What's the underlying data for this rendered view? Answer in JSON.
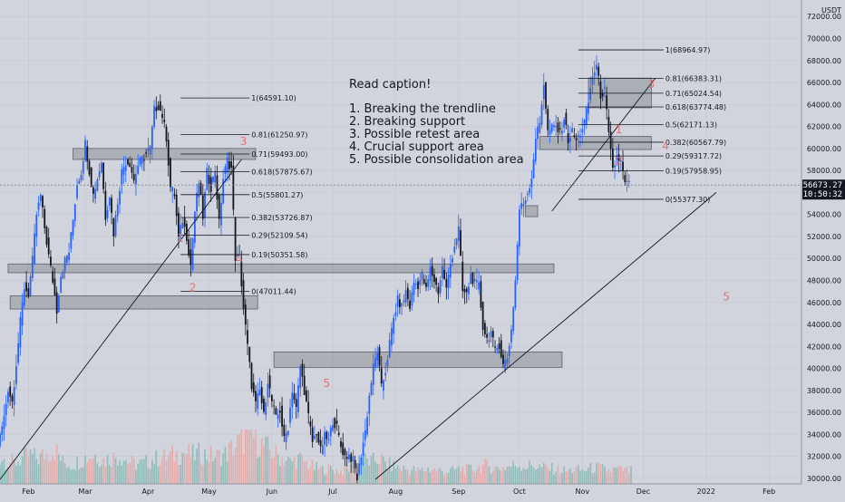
{
  "chart_data": {
    "type": "candlestick",
    "axis": {
      "currency": "USDT",
      "y_ticks": [
        30000,
        32000,
        34000,
        36000,
        38000,
        40000,
        42000,
        44000,
        46000,
        48000,
        50000,
        52000,
        54000,
        56000,
        58000,
        60000,
        62000,
        64000,
        66000,
        68000,
        70000,
        72000
      ],
      "y_tick_labels": [
        "30000.00",
        "32000.00",
        "34000.00",
        "36000.00",
        "38000.00",
        "40000.00",
        "42000.00",
        "44000.00",
        "46000.00",
        "48000.00",
        "50000.00",
        "52000.00",
        "54000.00",
        "56000.00",
        "58000.00",
        "60000.00",
        "62000.00",
        "64000.00",
        "66000.00",
        "68000.00",
        "70000.00",
        "72000.00"
      ],
      "ylim": [
        29500,
        73500
      ],
      "x_ticks": [
        "Feb",
        "Mar",
        "Apr",
        "May",
        "Jun",
        "Jul",
        "Aug",
        "Sep",
        "Oct",
        "Nov",
        "Dec",
        "2022",
        "Feb"
      ],
      "x_tick_days": [
        31,
        59,
        90,
        120,
        151,
        181,
        212,
        243,
        273,
        304,
        334,
        365,
        396
      ],
      "xlim_days": [
        17,
        412
      ]
    },
    "last_price": {
      "value": "56673.27",
      "time": "10:50:32",
      "y": 56673.27
    },
    "caption": {
      "title": "Read caption!",
      "items": [
        "1. Breaking the trendline",
        "2. Breaking support",
        "3. Possible retest area",
        "4. Crucial support area",
        "5. Possible consolidation area"
      ]
    },
    "fib_left": {
      "levels": [
        {
          "label": "1(64591.10)",
          "y": 64591.1
        },
        {
          "label": "0.81(61250.97)",
          "y": 61250.97
        },
        {
          "label": "0.71(59493.00)",
          "y": 59493.0
        },
        {
          "label": "0.618(57875.67)",
          "y": 57875.67
        },
        {
          "label": "0.5(55801.27)",
          "y": 55801.27
        },
        {
          "label": "0.382(53726.87)",
          "y": 53726.87
        },
        {
          "label": "0.29(52109.54)",
          "y": 52109.54
        },
        {
          "label": "0.19(50351.58)",
          "y": 50351.58
        },
        {
          "label": "0(47011.44)",
          "y": 47011.44
        }
      ],
      "x_from_day": 106,
      "x_to_day": 140
    },
    "fib_right": {
      "levels": [
        {
          "label": "1(68964.97)",
          "y": 68964.97
        },
        {
          "label": "0.81(66383.31)",
          "y": 66383.31
        },
        {
          "label": "0.71(65024.54)",
          "y": 65024.54
        },
        {
          "label": "0.618(63774.48)",
          "y": 63774.48
        },
        {
          "label": "0.5(62171.13)",
          "y": 62171.13
        },
        {
          "label": "0.382(60567.79)",
          "y": 60567.79
        },
        {
          "label": "0.29(59317.72)",
          "y": 59317.72
        },
        {
          "label": "0.19(57958.95)",
          "y": 57958.95
        },
        {
          "label": "0(55377.30)",
          "y": 55377.3
        }
      ],
      "x_from_day": 302,
      "x_to_day": 344
    },
    "zones": [
      {
        "x0": 53,
        "x1": 143,
        "y0": 59000,
        "y1": 60000
      },
      {
        "x0": 21,
        "x1": 290,
        "y0": 48700,
        "y1": 49500
      },
      {
        "x0": 22,
        "x1": 144,
        "y0": 45400,
        "y1": 46600
      },
      {
        "x0": 152,
        "x1": 294,
        "y0": 40100,
        "y1": 41500
      },
      {
        "x0": 276,
        "x1": 282,
        "y0": 53800,
        "y1": 54800
      },
      {
        "x0": 283,
        "x1": 338,
        "y0": 59900,
        "y1": 61100
      },
      {
        "x0": 307,
        "x1": 338,
        "y0": 63700,
        "y1": 66400
      }
    ],
    "annotations": [
      {
        "text": "1",
        "x": 106,
        "y": 51500
      },
      {
        "text": "2",
        "x": 112,
        "y": 47000
      },
      {
        "text": "3",
        "x": 137,
        "y": 60300
      },
      {
        "text": "4",
        "x": 135,
        "y": 49600
      },
      {
        "text": "5",
        "x": 178,
        "y": 38300
      },
      {
        "text": "1",
        "x": 322,
        "y": 61400
      },
      {
        "text": "2",
        "x": 322,
        "y": 58500
      },
      {
        "text": "3",
        "x": 338,
        "y": 65500
      },
      {
        "text": "4",
        "x": 345,
        "y": 59900
      },
      {
        "text": "5",
        "x": 375,
        "y": 46200
      }
    ],
    "trendlines": [
      {
        "x0": 17,
        "y0": 29900,
        "x1": 136,
        "y1": 59000
      },
      {
        "x0": 202,
        "y0": 29900,
        "x1": 370,
        "y1": 56000
      },
      {
        "x0": 289,
        "y0": 54300,
        "x1": 340,
        "y1": 66400
      }
    ],
    "price_path": [
      [
        17,
        33000
      ],
      [
        20,
        35500
      ],
      [
        22,
        38200
      ],
      [
        24,
        37000
      ],
      [
        26,
        40500
      ],
      [
        28,
        44200
      ],
      [
        30,
        47400
      ],
      [
        32,
        46800
      ],
      [
        34,
        49800
      ],
      [
        36,
        54000
      ],
      [
        38,
        55700
      ],
      [
        40,
        52800
      ],
      [
        42,
        50200
      ],
      [
        44,
        48000
      ],
      [
        46,
        45300
      ],
      [
        48,
        48500
      ],
      [
        50,
        49800
      ],
      [
        52,
        50600
      ],
      [
        54,
        53500
      ],
      [
        56,
        56800
      ],
      [
        58,
        57900
      ],
      [
        60,
        60500
      ],
      [
        62,
        58000
      ],
      [
        64,
        55800
      ],
      [
        66,
        57300
      ],
      [
        68,
        58800
      ],
      [
        70,
        53800
      ],
      [
        72,
        55800
      ],
      [
        74,
        52300
      ],
      [
        76,
        55200
      ],
      [
        78,
        57900
      ],
      [
        80,
        58800
      ],
      [
        82,
        58700
      ],
      [
        84,
        57100
      ],
      [
        86,
        58500
      ],
      [
        88,
        59000
      ],
      [
        90,
        59500
      ],
      [
        92,
        60000
      ],
      [
        94,
        63500
      ],
      [
        96,
        63900
      ],
      [
        98,
        63000
      ],
      [
        100,
        61000
      ],
      [
        102,
        56500
      ],
      [
        104,
        55800
      ],
      [
        106,
        51800
      ],
      [
        108,
        53500
      ],
      [
        110,
        52000
      ],
      [
        112,
        49400
      ],
      [
        114,
        54300
      ],
      [
        116,
        56900
      ],
      [
        118,
        53800
      ],
      [
        120,
        57800
      ],
      [
        122,
        56500
      ],
      [
        124,
        58000
      ],
      [
        126,
        53200
      ],
      [
        128,
        57300
      ],
      [
        130,
        58900
      ],
      [
        132,
        58200
      ],
      [
        134,
        50100
      ],
      [
        136,
        50000
      ],
      [
        138,
        45500
      ],
      [
        140,
        42000
      ],
      [
        142,
        38500
      ],
      [
        144,
        36700
      ],
      [
        146,
        38000
      ],
      [
        148,
        35700
      ],
      [
        150,
        39000
      ],
      [
        152,
        37000
      ],
      [
        154,
        35400
      ],
      [
        156,
        36200
      ],
      [
        158,
        33500
      ],
      [
        160,
        34700
      ],
      [
        162,
        38100
      ],
      [
        164,
        36300
      ],
      [
        166,
        40200
      ],
      [
        168,
        38000
      ],
      [
        170,
        35600
      ],
      [
        172,
        33300
      ],
      [
        174,
        34200
      ],
      [
        176,
        32500
      ],
      [
        178,
        33800
      ],
      [
        180,
        33400
      ],
      [
        182,
        35300
      ],
      [
        184,
        34600
      ],
      [
        186,
        32900
      ],
      [
        188,
        32000
      ],
      [
        190,
        32100
      ],
      [
        192,
        31600
      ],
      [
        194,
        30000
      ],
      [
        196,
        32200
      ],
      [
        198,
        34300
      ],
      [
        200,
        37500
      ],
      [
        202,
        40100
      ],
      [
        204,
        41600
      ],
      [
        206,
        38200
      ],
      [
        208,
        39800
      ],
      [
        210,
        42300
      ],
      [
        212,
        44500
      ],
      [
        214,
        46200
      ],
      [
        216,
        45600
      ],
      [
        218,
        47000
      ],
      [
        220,
        45600
      ],
      [
        222,
        47800
      ],
      [
        224,
        47600
      ],
      [
        226,
        48500
      ],
      [
        228,
        47100
      ],
      [
        230,
        49000
      ],
      [
        232,
        48000
      ],
      [
        234,
        47000
      ],
      [
        236,
        49200
      ],
      [
        238,
        47200
      ],
      [
        240,
        49500
      ],
      [
        242,
        51200
      ],
      [
        244,
        52700
      ],
      [
        246,
        47000
      ],
      [
        248,
        46700
      ],
      [
        250,
        48500
      ],
      [
        252,
        47700
      ],
      [
        254,
        47500
      ],
      [
        256,
        43800
      ],
      [
        258,
        42700
      ],
      [
        260,
        43300
      ],
      [
        262,
        41500
      ],
      [
        264,
        42200
      ],
      [
        266,
        40300
      ],
      [
        268,
        41000
      ],
      [
        270,
        43500
      ],
      [
        272,
        48000
      ],
      [
        274,
        54500
      ],
      [
        276,
        55000
      ],
      [
        278,
        56000
      ],
      [
        280,
        57400
      ],
      [
        282,
        61000
      ],
      [
        284,
        62300
      ],
      [
        286,
        66000
      ],
      [
        288,
        61500
      ],
      [
        290,
        61800
      ],
      [
        292,
        62000
      ],
      [
        294,
        61300
      ],
      [
        296,
        62800
      ],
      [
        298,
        60800
      ],
      [
        300,
        61500
      ],
      [
        302,
        60700
      ],
      [
        304,
        61400
      ],
      [
        306,
        62400
      ],
      [
        308,
        64200
      ],
      [
        310,
        66600
      ],
      [
        312,
        67500
      ],
      [
        314,
        64900
      ],
      [
        316,
        65200
      ],
      [
        318,
        61200
      ],
      [
        320,
        58000
      ],
      [
        322,
        59200
      ],
      [
        324,
        58700
      ],
      [
        326,
        56800
      ],
      [
        328,
        56700
      ]
    ],
    "volume_path": [
      [
        17,
        2500
      ],
      [
        20,
        2200
      ],
      [
        24,
        1900
      ],
      [
        28,
        2400
      ],
      [
        32,
        2600
      ],
      [
        36,
        2300
      ],
      [
        40,
        2800
      ],
      [
        44,
        3200
      ],
      [
        48,
        2000
      ],
      [
        52,
        1800
      ],
      [
        56,
        2100
      ],
      [
        60,
        2500
      ],
      [
        64,
        2700
      ],
      [
        68,
        2200
      ],
      [
        72,
        2400
      ],
      [
        76,
        2600
      ],
      [
        80,
        2100
      ],
      [
        84,
        1800
      ],
      [
        88,
        1900
      ],
      [
        92,
        2200
      ],
      [
        96,
        2400
      ],
      [
        100,
        2500
      ],
      [
        104,
        2700
      ],
      [
        108,
        2900
      ],
      [
        112,
        2600
      ],
      [
        116,
        2800
      ],
      [
        120,
        2600
      ],
      [
        124,
        2500
      ],
      [
        128,
        2700
      ],
      [
        132,
        3400
      ],
      [
        136,
        3900
      ],
      [
        140,
        4800
      ],
      [
        144,
        3900
      ],
      [
        148,
        3300
      ],
      [
        152,
        2800
      ],
      [
        156,
        2400
      ],
      [
        160,
        2000
      ],
      [
        164,
        2300
      ],
      [
        168,
        1900
      ],
      [
        172,
        1500
      ],
      [
        176,
        1300
      ],
      [
        180,
        1400
      ],
      [
        184,
        1200
      ],
      [
        188,
        1300
      ],
      [
        192,
        1500
      ],
      [
        196,
        2200
      ],
      [
        200,
        2000
      ],
      [
        204,
        2300
      ],
      [
        208,
        1800
      ],
      [
        212,
        1600
      ],
      [
        216,
        1400
      ],
      [
        220,
        1300
      ],
      [
        224,
        1200
      ],
      [
        228,
        1400
      ],
      [
        232,
        1300
      ],
      [
        236,
        1100
      ],
      [
        240,
        1200
      ],
      [
        244,
        1400
      ],
      [
        248,
        1300
      ],
      [
        252,
        1500
      ],
      [
        256,
        1700
      ],
      [
        260,
        1500
      ],
      [
        264,
        1400
      ],
      [
        268,
        1600
      ],
      [
        272,
        1800
      ],
      [
        276,
        1600
      ],
      [
        280,
        1700
      ],
      [
        284,
        1500
      ],
      [
        288,
        1400
      ],
      [
        292,
        1300
      ],
      [
        296,
        1200
      ],
      [
        300,
        1300
      ],
      [
        304,
        1250
      ],
      [
        308,
        1400
      ],
      [
        312,
        1500
      ],
      [
        316,
        1200
      ],
      [
        320,
        1300
      ],
      [
        324,
        1250
      ],
      [
        328,
        1200
      ]
    ]
  }
}
